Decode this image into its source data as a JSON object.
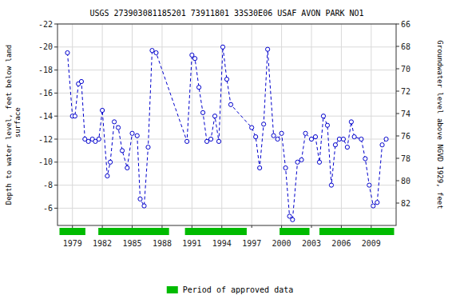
{
  "chart_data": {
    "type": "line",
    "title": "USGS 273903081185201 73911801  33S30E06 USAF AVON PARK NO1",
    "y_label": "Depth to water level, feet below land\n surface",
    "y2_label": "Groundwater level above NGVD 1929, feet",
    "grid": true,
    "legend": "bottom",
    "xlim": [
      1977.5,
      2011.5
    ],
    "xticks": [
      1979,
      1982,
      1985,
      1988,
      1991,
      1994,
      1997,
      2000,
      2003,
      2006,
      2009
    ],
    "ylim": [
      -4.5,
      -22
    ],
    "yticks": [
      -22,
      -20,
      -18,
      -16,
      -14,
      -12,
      -10,
      -8,
      -6
    ],
    "y2lim": [
      84,
      66
    ],
    "y2ticks": [
      82,
      80,
      78,
      76,
      74,
      72,
      70,
      68,
      66
    ],
    "x": [
      1978.5,
      1979.0,
      1979.25,
      1979.6,
      1979.9,
      1980.25,
      1980.6,
      1981.0,
      1981.3,
      1981.65,
      1982.0,
      1982.5,
      1982.8,
      1983.2,
      1983.6,
      1984.0,
      1984.5,
      1985.0,
      1985.5,
      1985.8,
      1986.2,
      1986.6,
      1987.0,
      1987.4,
      1990.5,
      1991.0,
      1991.3,
      1991.7,
      1992.1,
      1992.5,
      1992.9,
      1993.3,
      1993.7,
      1994.1,
      1994.5,
      1994.9,
      1997.0,
      1997.4,
      1997.8,
      1998.2,
      1998.6,
      1999.2,
      1999.6,
      2000.0,
      2000.4,
      2000.8,
      2001.1,
      2001.6,
      2002.0,
      2002.4,
      2003.0,
      2003.4,
      2003.8,
      2004.2,
      2004.6,
      2005.0,
      2005.4,
      2005.8,
      2006.2,
      2006.6,
      2007.0,
      2007.3,
      2008.0,
      2008.4,
      2008.8,
      2009.2,
      2009.6,
      2010.1,
      2010.5
    ],
    "series": [
      {
        "color": "#0000cc",
        "marker": "circle",
        "line_style": "dashed",
        "values": [
          -19.5,
          -14.0,
          -14.0,
          -16.8,
          -17.0,
          -12.0,
          -11.8,
          -12.0,
          -11.8,
          -12.0,
          -14.5,
          -8.8,
          -10.0,
          -13.5,
          -13.0,
          -11.0,
          -9.5,
          -12.5,
          -12.3,
          -6.8,
          -6.2,
          -11.3,
          -19.7,
          -19.5,
          -11.8,
          -19.3,
          -19.0,
          -16.5,
          -14.3,
          -11.8,
          -12.0,
          -14.0,
          -11.8,
          -20.0,
          -17.2,
          -15.0,
          -13.0,
          -12.2,
          -9.5,
          -13.3,
          -19.8,
          -12.3,
          -12.0,
          -12.5,
          -9.5,
          -5.3,
          -5.0,
          -10.0,
          -10.2,
          -12.5,
          -12.0,
          -12.2,
          -10.0,
          -14.0,
          -13.2,
          -8.0,
          -11.5,
          -12.0,
          -12.0,
          -11.3,
          -13.5,
          -12.2,
          -12.0,
          -10.3,
          -8.0,
          -6.2,
          -6.5,
          -11.5,
          -12.0
        ]
      }
    ],
    "periods": {
      "name": "Period of approved data",
      "color": "#00bb00",
      "ranges": [
        [
          1977.7,
          1980.3
        ],
        [
          1981.6,
          1988.7
        ],
        [
          1990.3,
          1996.5
        ],
        [
          1999.8,
          2002.8
        ],
        [
          2003.8,
          2011.3
        ]
      ]
    }
  }
}
